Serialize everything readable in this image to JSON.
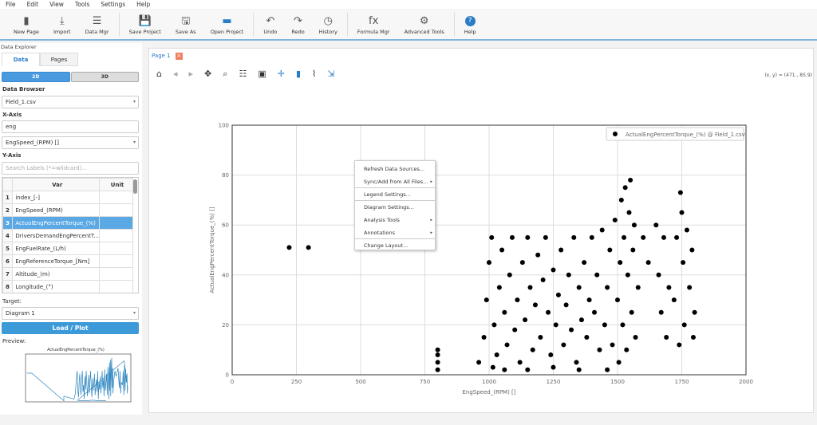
{
  "menubar": [
    "File",
    "Edit",
    "View",
    "Tools",
    "Settings",
    "Help"
  ],
  "toolbar": [
    {
      "label": "New Page",
      "icon": "new-page-icon",
      "g": "▮"
    },
    {
      "label": "Import",
      "icon": "import-icon",
      "g": "⤓"
    },
    {
      "label": "Data Mgr",
      "icon": "data-manager-icon",
      "g": "☰"
    },
    {
      "sep": true
    },
    {
      "label": "Save Project",
      "icon": "save-icon",
      "g": "💾"
    },
    {
      "label": "Save As",
      "icon": "save-as-icon",
      "g": "🖫"
    },
    {
      "label": "Open Project",
      "icon": "folder-icon",
      "g": "▬"
    },
    {
      "sep": true
    },
    {
      "label": "Undo",
      "icon": "undo-icon",
      "g": "↶"
    },
    {
      "label": "Redo",
      "icon": "redo-icon",
      "g": "↷"
    },
    {
      "label": "History",
      "icon": "history-icon",
      "g": "◷"
    },
    {
      "sep": true
    },
    {
      "label": "Formula Mgr",
      "icon": "formula-icon",
      "g": "fx"
    },
    {
      "label": "Advanced Tools",
      "icon": "gear-icon",
      "g": "⚙"
    },
    {
      "sep": true
    },
    {
      "label": "Help",
      "icon": "help-icon",
      "g": "?"
    }
  ],
  "explorer": {
    "title": "Data Explorer",
    "tabs": [
      "Data",
      "Pages"
    ],
    "modes": [
      "2D",
      "3D"
    ],
    "data_browser_label": "Data Browser",
    "data_browser_value": "Field_1.csv",
    "x_axis_label": "X-Axis",
    "x_filter": "eng",
    "x_value": "EngSpeed_(RPM) []",
    "y_axis_label": "Y-Axis",
    "y_search_placeholder": "Search Labels (*=wildcard)...",
    "columns": [
      "Var",
      "Unit"
    ],
    "rows": [
      [
        "1",
        "index_[-]"
      ],
      [
        "2",
        "EngSpeed_(RPM)"
      ],
      [
        "3",
        "ActualEngPercentTorque_(%)"
      ],
      [
        "4",
        "DriversDemandEngPercentT..."
      ],
      [
        "5",
        "EngFuelRate_(L/h)"
      ],
      [
        "6",
        "EngReferenceTorque_[Nm]"
      ],
      [
        "7",
        "Altitude_(m)"
      ],
      [
        "8",
        "Longitude_(°)"
      ]
    ],
    "selected_row": 2,
    "target_label": "Target:",
    "target_value": "Diagram 1",
    "load_button": "Load / Plot",
    "preview_label": "Preview:",
    "preview_title": "ActualEngPercentTorque_(%)"
  },
  "page_tab": "Page 1",
  "plot_tools": [
    "home-icon",
    "back-icon",
    "forward-icon",
    "pan-icon",
    "zoom-icon",
    "sliders-icon",
    "save-icon",
    "crosshair-icon",
    "bar-chart-icon",
    "line-icon",
    "export-icon"
  ],
  "coord_readout": "(x, y) = (471., 85.9)",
  "context_menu": [
    {
      "label": "Refresh Data Sources...",
      "sub": false,
      "div": false
    },
    {
      "label": "Sync/Add from All Files...",
      "sub": true,
      "div": true
    },
    {
      "label": "Legend Settings...",
      "sub": false,
      "div": true
    },
    {
      "label": "Diagram Settings...",
      "sub": false,
      "div": false
    },
    {
      "label": "Analysis Tools",
      "sub": true,
      "div": false
    },
    {
      "label": "Annotations",
      "sub": true,
      "div": true
    },
    {
      "label": "Change Layout...",
      "sub": false,
      "div": false
    }
  ],
  "chart_data": {
    "type": "scatter",
    "xlabel": "EngSpeed_(RPM) []",
    "ylabel": "ActualEngPercentTorque_(%) []",
    "xlim": [
      0,
      2000
    ],
    "ylim": [
      0,
      100
    ],
    "xticks": [
      0,
      250,
      500,
      750,
      1000,
      1250,
      1500,
      1750,
      2000
    ],
    "yticks": [
      0,
      20,
      40,
      60,
      80,
      100
    ],
    "grid": true,
    "legend": "top-right",
    "series": [
      {
        "name": "ActualEngPercentTorque_(%) @ Field_1.csv",
        "color": "#000000",
        "points": [
          [
            222,
            51
          ],
          [
            297,
            51
          ],
          [
            800,
            2
          ],
          [
            800,
            5
          ],
          [
            800,
            8
          ],
          [
            800,
            10
          ],
          [
            960,
            5
          ],
          [
            980,
            15
          ],
          [
            990,
            30
          ],
          [
            1000,
            45
          ],
          [
            1010,
            55
          ],
          [
            1020,
            20
          ],
          [
            1030,
            8
          ],
          [
            1040,
            35
          ],
          [
            1050,
            50
          ],
          [
            1060,
            25
          ],
          [
            1070,
            12
          ],
          [
            1080,
            40
          ],
          [
            1090,
            55
          ],
          [
            1100,
            18
          ],
          [
            1110,
            30
          ],
          [
            1120,
            5
          ],
          [
            1130,
            45
          ],
          [
            1140,
            22
          ],
          [
            1150,
            55
          ],
          [
            1160,
            35
          ],
          [
            1170,
            10
          ],
          [
            1180,
            28
          ],
          [
            1190,
            48
          ],
          [
            1200,
            15
          ],
          [
            1210,
            38
          ],
          [
            1220,
            55
          ],
          [
            1230,
            25
          ],
          [
            1240,
            8
          ],
          [
            1250,
            42
          ],
          [
            1260,
            20
          ],
          [
            1270,
            32
          ],
          [
            1280,
            50
          ],
          [
            1290,
            12
          ],
          [
            1300,
            28
          ],
          [
            1310,
            40
          ],
          [
            1320,
            18
          ],
          [
            1330,
            55
          ],
          [
            1340,
            5
          ],
          [
            1350,
            35
          ],
          [
            1360,
            22
          ],
          [
            1370,
            45
          ],
          [
            1380,
            15
          ],
          [
            1390,
            30
          ],
          [
            1400,
            55
          ],
          [
            1410,
            25
          ],
          [
            1420,
            40
          ],
          [
            1430,
            10
          ],
          [
            1440,
            58
          ],
          [
            1450,
            20
          ],
          [
            1460,
            35
          ],
          [
            1470,
            50
          ],
          [
            1480,
            12
          ],
          [
            1490,
            62
          ],
          [
            1500,
            30
          ],
          [
            1505,
            5
          ],
          [
            1510,
            45
          ],
          [
            1515,
            70
          ],
          [
            1520,
            20
          ],
          [
            1525,
            55
          ],
          [
            1530,
            75
          ],
          [
            1535,
            10
          ],
          [
            1540,
            40
          ],
          [
            1545,
            65
          ],
          [
            1550,
            78
          ],
          [
            1555,
            25
          ],
          [
            1560,
            50
          ],
          [
            1565,
            60
          ],
          [
            1570,
            15
          ],
          [
            1580,
            35
          ],
          [
            1600,
            55
          ],
          [
            1620,
            45
          ],
          [
            1650,
            60
          ],
          [
            1660,
            40
          ],
          [
            1670,
            25
          ],
          [
            1680,
            55
          ],
          [
            1690,
            15
          ],
          [
            1700,
            35
          ],
          [
            1720,
            30
          ],
          [
            1730,
            55
          ],
          [
            1740,
            12
          ],
          [
            1750,
            65
          ],
          [
            1755,
            45
          ],
          [
            1760,
            20
          ],
          [
            1770,
            58
          ],
          [
            1780,
            35
          ],
          [
            1790,
            50
          ],
          [
            1795,
            15
          ],
          [
            1800,
            25
          ],
          [
            1745,
            73
          ],
          [
            1015,
            3
          ],
          [
            1060,
            2
          ],
          [
            1150,
            2
          ],
          [
            1250,
            3
          ],
          [
            1350,
            2
          ],
          [
            1460,
            2
          ]
        ]
      }
    ]
  }
}
